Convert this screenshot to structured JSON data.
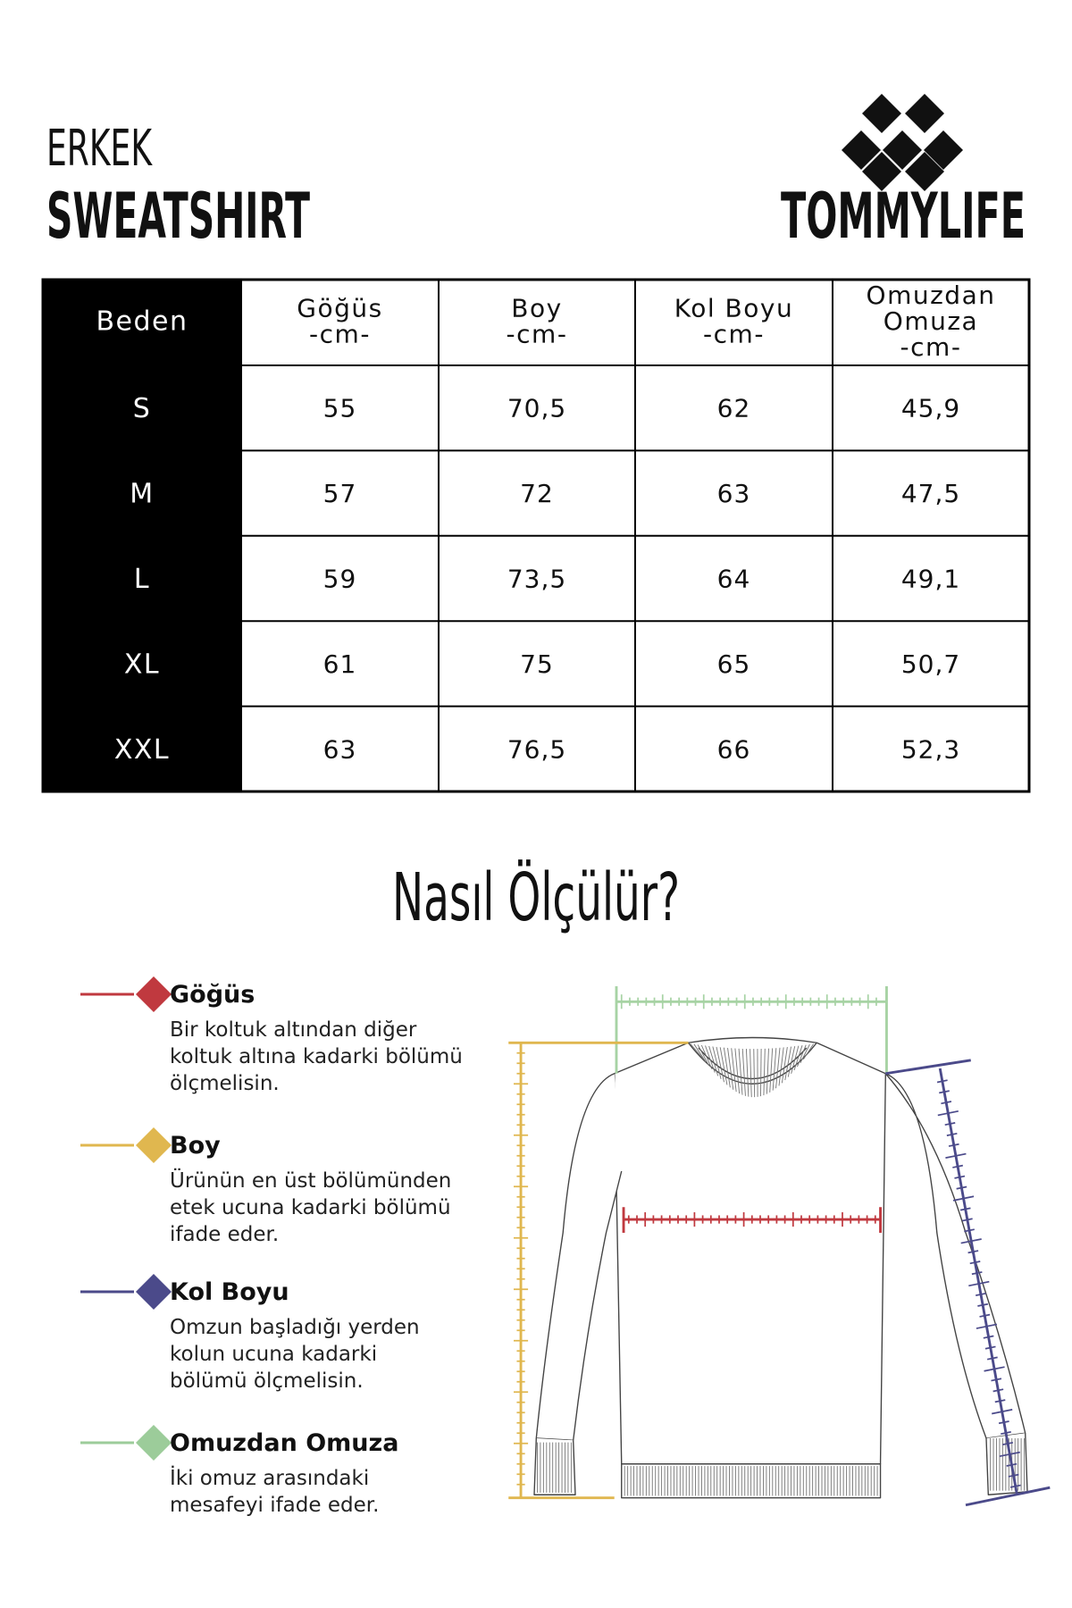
{
  "header": {
    "category": "ERKEK",
    "product": "SWEATSHIRT",
    "brand": "TOMMYLIFE"
  },
  "table": {
    "columns": [
      [
        "Beden"
      ],
      [
        "Göğüs",
        "-cm-"
      ],
      [
        "Boy",
        "-cm-"
      ],
      [
        "Kol Boyu",
        "-cm-"
      ],
      [
        "Omuzdan",
        "Omuza",
        "-cm-"
      ]
    ],
    "rows": [
      [
        "S",
        "55",
        "70,5",
        "62",
        "45,9"
      ],
      [
        "M",
        "57",
        "72",
        "63",
        "47,5"
      ],
      [
        "L",
        "59",
        "73,5",
        "64",
        "49,1"
      ],
      [
        "XL",
        "61",
        "75",
        "65",
        "50,7"
      ],
      [
        "XXL",
        "63",
        "76,5",
        "66",
        "52,3"
      ]
    ]
  },
  "guide": {
    "title": "Nasıl Ölçülür?",
    "items": [
      {
        "name": "Göğüs",
        "description": [
          "Bir koltuk altından diğer",
          "koltuk altına kadarki bölümü",
          "ölçmelisin."
        ]
      },
      {
        "name": "Boy",
        "description": [
          "Ürünün en üst bölümünden",
          "etek ucuna kadarki bölümü",
          "ifade eder."
        ]
      },
      {
        "name": "Kol Boyu",
        "description": [
          "Omzun başladığı yerden",
          "kolun ucuna kadarki",
          "bölümü ölçmelisin."
        ]
      },
      {
        "name": "Omuzdan Omuza",
        "description": [
          "İki omuz arasındaki",
          "mesafeyi ifade eder."
        ]
      }
    ]
  }
}
